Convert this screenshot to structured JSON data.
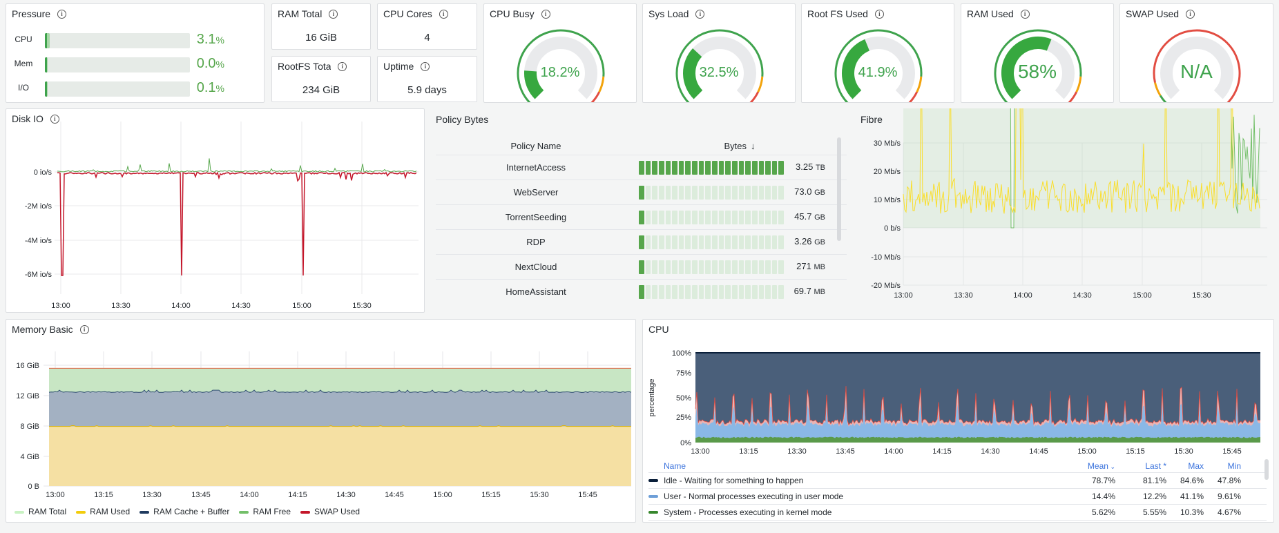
{
  "pressure": {
    "title": "Pressure",
    "rows": [
      {
        "label": "CPU",
        "value": "3.1",
        "unit": "%",
        "fill": 0.031
      },
      {
        "label": "Mem",
        "value": "0.0",
        "unit": "%",
        "fill": 0.0
      },
      {
        "label": "I/O",
        "value": "0.1",
        "unit": "%",
        "fill": 0.001
      }
    ]
  },
  "stats": {
    "ram_total": {
      "title": "RAM Total",
      "value": "16 GiB"
    },
    "cpu_cores": {
      "title": "CPU Cores",
      "value": "4"
    },
    "rootfs_total": {
      "title": "RootFS Total",
      "value": "234 GiB"
    },
    "uptime": {
      "title": "Uptime",
      "value": "5.9 days"
    }
  },
  "gauges": [
    {
      "title": "CPU Busy",
      "value": "18.2%",
      "pct": 18.2,
      "color": "#3fa34d"
    },
    {
      "title": "Sys Load",
      "value": "32.5%",
      "pct": 32.5,
      "color": "#3fa34d"
    },
    {
      "title": "Root FS Used",
      "value": "41.9%",
      "pct": 41.9,
      "color": "#3fa34d"
    },
    {
      "title": "RAM Used",
      "value": "58%",
      "pct": 58,
      "color": "#3fa34d"
    },
    {
      "title": "SWAP Used",
      "value": "N/A",
      "pct": 0,
      "color": "#3fa34d"
    }
  ],
  "diskio": {
    "title": "Disk IO",
    "yticks": [
      "0 io/s",
      "-2M io/s",
      "-4M io/s",
      "-6M io/s"
    ],
    "xticks": [
      "13:00",
      "13:30",
      "14:00",
      "14:30",
      "15:00",
      "15:30"
    ]
  },
  "policy": {
    "title": "Policy Bytes",
    "col_name": "Policy Name",
    "col_bytes": "Bytes",
    "rows": [
      {
        "name": "InternetAccess",
        "num": "3.25",
        "unit": "TB",
        "frac": 1.0
      },
      {
        "name": "WebServer",
        "num": "73.0",
        "unit": "GB",
        "frac": 0.02
      },
      {
        "name": "TorrentSeeding",
        "num": "45.7",
        "unit": "GB",
        "frac": 0.015
      },
      {
        "name": "RDP",
        "num": "3.26",
        "unit": "GB",
        "frac": 0.01
      },
      {
        "name": "NextCloud",
        "num": "271",
        "unit": "MB",
        "frac": 0.01
      },
      {
        "name": "HomeAssistant",
        "num": "69.7",
        "unit": "MB",
        "frac": 0.01
      }
    ]
  },
  "fibre": {
    "title": "Fibre",
    "yticks": [
      "30 Mb/s",
      "20 Mb/s",
      "10 Mb/s",
      "0 b/s",
      "-10 Mb/s",
      "-20 Mb/s"
    ],
    "xticks": [
      "13:00",
      "13:30",
      "14:00",
      "14:30",
      "15:00",
      "15:30"
    ]
  },
  "memory": {
    "title": "Memory Basic",
    "yticks": [
      "16 GiB",
      "12 GiB",
      "8 GiB",
      "4 GiB",
      "0 B"
    ],
    "xticks": [
      "13:00",
      "13:15",
      "13:30",
      "13:45",
      "14:00",
      "14:15",
      "14:30",
      "14:45",
      "15:00",
      "15:15",
      "15:30",
      "15:45"
    ],
    "legend": [
      {
        "label": "RAM Total",
        "color": "#c8f2c2"
      },
      {
        "label": "RAM Used",
        "color": "#f2cc0c"
      },
      {
        "label": "RAM Cache + Buffer",
        "color": "#1f3a5f"
      },
      {
        "label": "RAM Free",
        "color": "#73bf69"
      },
      {
        "label": "SWAP Used",
        "color": "#c4162a"
      }
    ]
  },
  "cpu": {
    "title": "CPU",
    "ylabel": "percentage",
    "yticks": [
      "100%",
      "75%",
      "50%",
      "25%",
      "0%"
    ],
    "xticks": [
      "13:00",
      "13:15",
      "13:30",
      "13:45",
      "14:00",
      "14:15",
      "14:30",
      "14:45",
      "15:00",
      "15:15",
      "15:30",
      "15:45"
    ],
    "cols": {
      "name": "Name",
      "mean": "Mean",
      "last": "Last *",
      "max": "Max",
      "min": "Min"
    },
    "rows": [
      {
        "name": "Idle - Waiting for something to happen",
        "color": "#0a1f3a",
        "mean": "78.7%",
        "last": "81.1%",
        "max": "84.6%",
        "min": "47.8%"
      },
      {
        "name": "User - Normal processes executing in user mode",
        "color": "#6e9fd8",
        "mean": "14.4%",
        "last": "12.2%",
        "max": "41.1%",
        "min": "9.61%"
      },
      {
        "name": "System - Processes executing in kernel mode",
        "color": "#37872d",
        "mean": "5.62%",
        "last": "5.55%",
        "max": "10.3%",
        "min": "4.67%"
      }
    ]
  }
}
